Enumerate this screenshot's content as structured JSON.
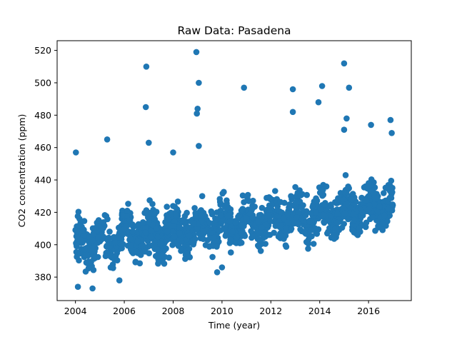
{
  "chart_data": {
    "type": "scatter",
    "title": "Raw Data: Pasadena",
    "xlabel": "Time (year)",
    "ylabel": "CO2 concentration (ppm)",
    "xlim": [
      2003.25,
      2017.75
    ],
    "ylim": [
      365.5,
      526
    ],
    "xticks": [
      2004,
      2006,
      2008,
      2010,
      2012,
      2014,
      2016
    ],
    "yticks": [
      380,
      400,
      420,
      440,
      460,
      480,
      500,
      520
    ],
    "grid": false,
    "legend": "none",
    "marker_color": "#1f77b4",
    "series": [
      {
        "trend": {
          "start_year": 2004.0,
          "end_year": 2017.0,
          "start_value": 400,
          "end_value": 425,
          "spread": 22
        },
        "notable_points": [
          {
            "x": 2004.02,
            "y": 457
          },
          {
            "x": 2004.1,
            "y": 374
          },
          {
            "x": 2004.7,
            "y": 373
          },
          {
            "x": 2005.3,
            "y": 465
          },
          {
            "x": 2005.8,
            "y": 378
          },
          {
            "x": 2006.9,
            "y": 510
          },
          {
            "x": 2006.88,
            "y": 485
          },
          {
            "x": 2007.0,
            "y": 463
          },
          {
            "x": 2008.0,
            "y": 457
          },
          {
            "x": 2008.95,
            "y": 519
          },
          {
            "x": 2009.05,
            "y": 500
          },
          {
            "x": 2009.0,
            "y": 484
          },
          {
            "x": 2008.97,
            "y": 481
          },
          {
            "x": 2009.05,
            "y": 461
          },
          {
            "x": 2010.9,
            "y": 497
          },
          {
            "x": 2012.9,
            "y": 496
          },
          {
            "x": 2012.9,
            "y": 482
          },
          {
            "x": 2013.95,
            "y": 488
          },
          {
            "x": 2014.1,
            "y": 498
          },
          {
            "x": 2015.0,
            "y": 512
          },
          {
            "x": 2015.1,
            "y": 478
          },
          {
            "x": 2015.2,
            "y": 497
          },
          {
            "x": 2015.0,
            "y": 471
          },
          {
            "x": 2016.1,
            "y": 474
          },
          {
            "x": 2016.9,
            "y": 477
          },
          {
            "x": 2016.95,
            "y": 469
          },
          {
            "x": 2009.8,
            "y": 383
          },
          {
            "x": 2010.0,
            "y": 386
          }
        ]
      }
    ]
  }
}
